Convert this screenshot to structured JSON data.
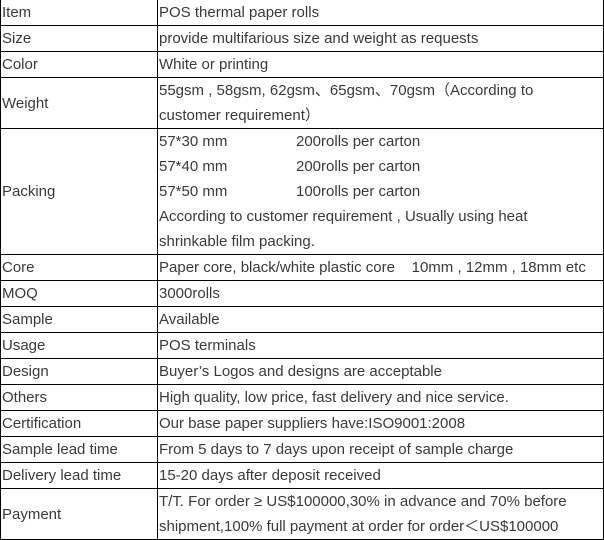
{
  "rows": [
    {
      "label": "Item",
      "value": "POS thermal paper rolls"
    },
    {
      "label": "Size",
      "value": "provide multifarious size and weight as requests"
    },
    {
      "label": "Color",
      "value": "White or printing"
    },
    {
      "label": "Weight",
      "lines": [
        "55gsm , 58gsm, 62gsm、65gsm、70gsm（According to",
        "customer requirement）"
      ]
    },
    {
      "label": "Packing",
      "sizes": [
        {
          "size": "57*30 mm",
          "qty": "200rolls per carton"
        },
        {
          "size": "57*40 mm",
          "qty": "200rolls per carton"
        },
        {
          "size": "57*50 mm",
          "qty": "100rolls per carton"
        }
      ],
      "lines": [
        "According to customer requirement , Usually  using heat",
        "shrinkable film packing."
      ]
    },
    {
      "label": "Core",
      "value": "Paper core, black/white plastic core    10mm , 12mm , 18mm etc"
    },
    {
      "label": "MOQ",
      "value": "3000rolls"
    },
    {
      "label": "Sample",
      "value": "Available"
    },
    {
      "label": "Usage",
      "value": "POS terminals"
    },
    {
      "label": "Design",
      "value": "Buyer’s Logos and designs are acceptable"
    },
    {
      "label": "Others",
      "value": "High quality, low price, fast delivery and nice service."
    },
    {
      "label": "Certification",
      "value": "Our base paper suppliers have:ISO9001:2008"
    },
    {
      "label": "Sample lead time",
      "value": "From 5 days to 7 days upon receipt of sample charge"
    },
    {
      "label": "Delivery lead time",
      "value": "15-20 days after deposit received"
    },
    {
      "label": "Payment",
      "lines": [
        "T/T. For order ≥ US$100000,30% in advance and 70% before",
        "shipment,100% full payment at order for order＜US$100000"
      ]
    }
  ]
}
